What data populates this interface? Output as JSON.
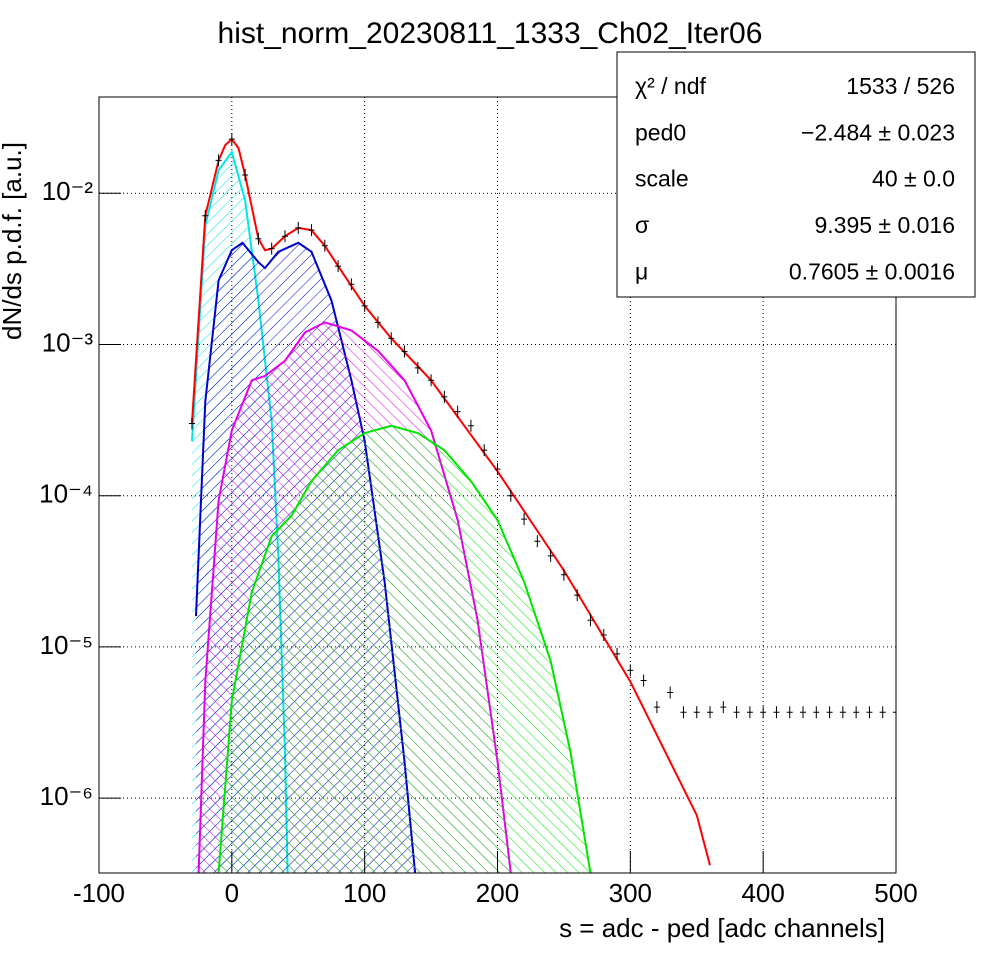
{
  "chart_data": {
    "type": "histogram-fit",
    "title": "hist_norm_20230811_1333_Ch02_Iter06",
    "x_label": "s = adc - ped [adc channels]",
    "y_label": "dN/ds p.d.f. [a.u.]",
    "log_y": true,
    "grid": true,
    "xlim": [
      -100,
      500
    ],
    "xticks": [
      -100,
      0,
      100,
      200,
      300,
      400,
      500
    ],
    "ylim": [
      3.2e-07,
      0.0433
    ],
    "yticks": [
      {
        "value": 1e-06,
        "label": "10⁻⁶"
      },
      {
        "value": 1e-05,
        "label": "10⁻⁵"
      },
      {
        "value": 0.0001,
        "label": "10⁻⁴"
      },
      {
        "value": 0.001,
        "label": "10⁻³"
      },
      {
        "value": 0.01,
        "label": "10⁻²"
      }
    ],
    "stats": [
      [
        "χ² / ndf",
        "1533 / 526"
      ],
      [
        "ped0",
        "−2.484 ± 0.023"
      ],
      [
        "scale",
        "40 ± 0.0"
      ],
      [
        "σ",
        "9.395 ± 0.016"
      ],
      [
        "μ",
        "0.7605 ± 0.0016"
      ]
    ],
    "data": {
      "color": "#000000",
      "x": [
        -30,
        -20,
        -10,
        0,
        10,
        20,
        30,
        40,
        50,
        60,
        70,
        80,
        90,
        100,
        110,
        120,
        130,
        140,
        150,
        160,
        170,
        180,
        190,
        200,
        210,
        220,
        230,
        240,
        250,
        260,
        270,
        280,
        290,
        300,
        310,
        320,
        330,
        340,
        350,
        360,
        370,
        380,
        390,
        400,
        410,
        420,
        430,
        440,
        450,
        460,
        470,
        480,
        490,
        500
      ],
      "values": [
        0.0003,
        0.0071,
        0.0165,
        0.0228,
        0.0132,
        0.005,
        0.0043,
        0.0052,
        0.0059,
        0.0057,
        0.0045,
        0.0033,
        0.0025,
        0.0018,
        0.0014,
        0.0011,
        0.0009,
        0.0007,
        0.00058,
        0.00045,
        0.00036,
        0.00029,
        0.0002,
        0.00015,
        0.0001,
        7e-05,
        5e-05,
        4e-05,
        3e-05,
        2.2e-05,
        1.5e-05,
        1.2e-05,
        9e-06,
        7e-06,
        6e-06,
        4e-06,
        5e-06,
        3.7e-06,
        3.7e-06,
        3.7e-06,
        4e-06,
        3.7e-06,
        3.7e-06,
        3.7e-06,
        3.7e-06,
        3.7e-06,
        3.7e-06,
        3.7e-06,
        3.7e-06,
        3.7e-06,
        3.7e-06,
        3.7e-06,
        3.7e-06,
        3.7e-06
      ]
    },
    "series": [
      {
        "color": "#00e5e5",
        "x": [
          -30,
          -20,
          -10,
          0,
          10,
          20,
          30,
          35,
          40,
          42
        ],
        "values": [
          0.00023,
          0.0061,
          0.0142,
          0.0187,
          0.009,
          0.00195,
          0.00031,
          4e-05,
          2e-06,
          3.2e-07
        ]
      },
      {
        "color": "#0000cc",
        "x": [
          -27,
          -20,
          -10,
          0,
          8,
          20,
          25,
          35,
          50,
          60,
          75,
          90,
          100,
          115,
          130,
          138
        ],
        "values": [
          1.6e-05,
          0.00042,
          0.00265,
          0.0042,
          0.0047,
          0.0035,
          0.0032,
          0.0041,
          0.0047,
          0.0041,
          0.00195,
          0.00058,
          0.00023,
          2.7e-05,
          1.75e-06,
          3.2e-07
        ]
      },
      {
        "color": "#e500e5",
        "x": [
          -25,
          -20,
          -10,
          0,
          15,
          25,
          40,
          55,
          70,
          90,
          110,
          130,
          150,
          170,
          185,
          200,
          210
        ],
        "values": [
          3.2e-07,
          5.9e-06,
          9.3e-05,
          0.00027,
          0.00058,
          0.00062,
          0.00078,
          0.0012,
          0.0014,
          0.00124,
          0.00091,
          0.00058,
          0.00027,
          6.9e-05,
          1.5e-05,
          1.75e-06,
          3.2e-07
        ]
      },
      {
        "color": "#00e500",
        "x": [
          -10,
          0,
          15,
          30,
          45,
          60,
          80,
          100,
          120,
          140,
          160,
          180,
          200,
          220,
          240,
          255,
          270
        ],
        "values": [
          3.2e-07,
          4.4e-06,
          2.3e-05,
          5.4e-05,
          7.4e-05,
          0.000125,
          0.0002,
          0.00026,
          0.00029,
          0.00026,
          0.0002,
          0.000125,
          6.9e-05,
          2.7e-05,
          8.1e-06,
          2e-06,
          3.2e-07
        ]
      },
      {
        "color": "#ff0000",
        "x": [
          -30,
          -20,
          -10,
          -5,
          0,
          5,
          10,
          20,
          25,
          30,
          40,
          50,
          60,
          70,
          80,
          100,
          120,
          150,
          175,
          200,
          250,
          300,
          350,
          360
        ],
        "values": [
          0.000304,
          0.0071,
          0.0165,
          0.0208,
          0.0228,
          0.0199,
          0.0132,
          0.005,
          0.0042,
          0.0043,
          0.0052,
          0.0059,
          0.0057,
          0.0045,
          0.0033,
          0.0018,
          0.0011,
          0.00058,
          0.00029,
          0.000145,
          3.2e-05,
          5.9e-06,
          7.7e-07,
          3.6e-07
        ]
      }
    ]
  }
}
